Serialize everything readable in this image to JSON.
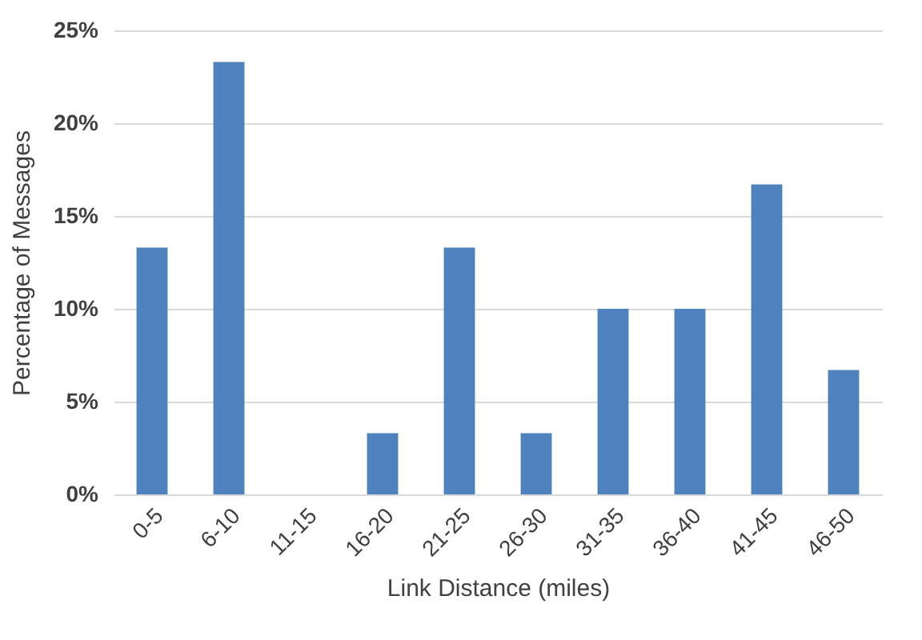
{
  "chart_data": {
    "type": "bar",
    "xlabel": "Link Distance (miles)",
    "ylabel": "Percentage of Messages",
    "categories": [
      "0-5",
      "6-10",
      "11-15",
      "16-20",
      "21-25",
      "26-30",
      "31-35",
      "36-40",
      "41-45",
      "46-50"
    ],
    "values": [
      13.3,
      23.3,
      0,
      3.3,
      13.3,
      3.3,
      10,
      10,
      16.7,
      6.7
    ],
    "color": "#4f81bd",
    "ylim": [
      0,
      25
    ],
    "yticks": [
      {
        "value": 0,
        "label": "0%"
      },
      {
        "value": 5,
        "label": "5%"
      },
      {
        "value": 10,
        "label": "10%"
      },
      {
        "value": 15,
        "label": "15%"
      },
      {
        "value": 20,
        "label": "20%"
      },
      {
        "value": 25,
        "label": "25%"
      }
    ],
    "grid": "y"
  }
}
